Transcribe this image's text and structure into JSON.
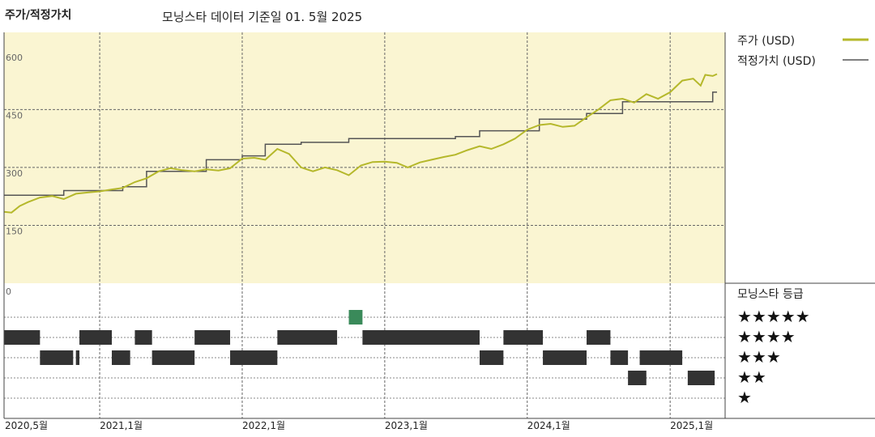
{
  "header": {
    "left_title": "주가/적정가치",
    "center_title": "모닝스타 데이터 기준일 01. 5월 2025"
  },
  "legend": {
    "price_label": "주가 (USD)",
    "fair_label": "적정가치 (USD)",
    "rating_title": "모닝스타 등급",
    "stars": [
      "★★★★★",
      "★★★★",
      "★★★",
      "★★",
      "★"
    ]
  },
  "colors": {
    "price_line": "#b5b82b",
    "fair_line": "#555555",
    "plot_bg": "#faf5d2",
    "rating_bar": "#333333",
    "rating_bar_5": "#3a8a5a"
  },
  "chart_data": [
    {
      "type": "line",
      "title": "",
      "y_ticks": [
        "600",
        "450",
        "300",
        "150",
        "0"
      ],
      "ylim": [
        0,
        650
      ],
      "x_ticks": [
        "2020,5월",
        "2021,1월",
        "2022,1월",
        "2023,1월",
        "2024,1월",
        "2025,1월"
      ],
      "x_tick_dates": [
        "2020-05-01",
        "2021-01-01",
        "2022-01-01",
        "2023-01-01",
        "2024-01-01",
        "2025-01-01"
      ],
      "xlim": [
        "2020-05-01",
        "2025-05-01"
      ],
      "series": [
        {
          "name": "주가 (USD)",
          "points": [
            [
              "2020-05-01",
              185
            ],
            [
              "2020-05-20",
              183
            ],
            [
              "2020-06-10",
              200
            ],
            [
              "2020-07-01",
              210
            ],
            [
              "2020-08-01",
              222
            ],
            [
              "2020-09-01",
              226
            ],
            [
              "2020-10-01",
              218
            ],
            [
              "2020-11-01",
              232
            ],
            [
              "2020-12-01",
              235
            ],
            [
              "2021-01-01",
              238
            ],
            [
              "2021-02-01",
              243
            ],
            [
              "2021-03-01",
              247
            ],
            [
              "2021-04-01",
              262
            ],
            [
              "2021-05-01",
              272
            ],
            [
              "2021-06-01",
              290
            ],
            [
              "2021-07-01",
              298
            ],
            [
              "2021-08-01",
              293
            ],
            [
              "2021-09-01",
              290
            ],
            [
              "2021-10-01",
              295
            ],
            [
              "2021-11-01",
              292
            ],
            [
              "2021-12-01",
              298
            ],
            [
              "2022-01-01",
              323
            ],
            [
              "2022-02-01",
              325
            ],
            [
              "2022-03-01",
              320
            ],
            [
              "2022-04-01",
              348
            ],
            [
              "2022-05-01",
              335
            ],
            [
              "2022-06-01",
              300
            ],
            [
              "2022-07-01",
              290
            ],
            [
              "2022-08-01",
              300
            ],
            [
              "2022-09-01",
              293
            ],
            [
              "2022-10-01",
              280
            ],
            [
              "2022-11-01",
              305
            ],
            [
              "2022-12-01",
              314
            ],
            [
              "2023-01-01",
              315
            ],
            [
              "2023-02-01",
              312
            ],
            [
              "2023-03-01",
              300
            ],
            [
              "2023-04-01",
              313
            ],
            [
              "2023-05-01",
              320
            ],
            [
              "2023-06-01",
              327
            ],
            [
              "2023-07-01",
              333
            ],
            [
              "2023-08-01",
              345
            ],
            [
              "2023-09-01",
              355
            ],
            [
              "2023-10-01",
              348
            ],
            [
              "2023-11-01",
              360
            ],
            [
              "2023-12-01",
              375
            ],
            [
              "2024-01-01",
              398
            ],
            [
              "2024-02-01",
              410
            ],
            [
              "2024-03-01",
              413
            ],
            [
              "2024-04-01",
              405
            ],
            [
              "2024-05-01",
              408
            ],
            [
              "2024-06-01",
              430
            ],
            [
              "2024-07-01",
              450
            ],
            [
              "2024-08-01",
              474
            ],
            [
              "2024-09-01",
              478
            ],
            [
              "2024-10-01",
              468
            ],
            [
              "2024-11-01",
              490
            ],
            [
              "2024-12-01",
              478
            ],
            [
              "2025-01-01",
              495
            ],
            [
              "2025-02-01",
              525
            ],
            [
              "2025-03-01",
              530
            ],
            [
              "2025-03-20",
              512
            ],
            [
              "2025-04-01",
              540
            ],
            [
              "2025-04-20",
              537
            ],
            [
              "2025-05-01",
              542
            ]
          ]
        },
        {
          "name": "적정가치 (USD)",
          "points": [
            [
              "2020-05-01",
              228
            ],
            [
              "2020-10-01",
              228
            ],
            [
              "2020-10-01",
              240
            ],
            [
              "2021-03-01",
              240
            ],
            [
              "2021-03-01",
              250
            ],
            [
              "2021-05-01",
              250
            ],
            [
              "2021-05-01",
              290
            ],
            [
              "2021-10-01",
              290
            ],
            [
              "2021-10-01",
              320
            ],
            [
              "2022-01-01",
              320
            ],
            [
              "2022-01-01",
              330
            ],
            [
              "2022-03-01",
              330
            ],
            [
              "2022-03-01",
              360
            ],
            [
              "2022-06-01",
              360
            ],
            [
              "2022-06-01",
              365
            ],
            [
              "2022-10-01",
              365
            ],
            [
              "2022-10-01",
              375
            ],
            [
              "2023-07-01",
              375
            ],
            [
              "2023-07-01",
              380
            ],
            [
              "2023-09-01",
              380
            ],
            [
              "2023-09-01",
              395
            ],
            [
              "2024-02-01",
              395
            ],
            [
              "2024-02-01",
              425
            ],
            [
              "2024-06-01",
              425
            ],
            [
              "2024-06-01",
              440
            ],
            [
              "2024-09-01",
              440
            ],
            [
              "2024-09-01",
              470
            ],
            [
              "2025-04-20",
              470
            ],
            [
              "2025-04-20",
              495
            ],
            [
              "2025-05-01",
              495
            ]
          ]
        }
      ]
    },
    {
      "type": "bar",
      "title": "",
      "xlim": [
        "2020-05-01",
        "2025-05-01"
      ],
      "series": [
        {
          "name": "5",
          "periods": [
            [
              "2022-10-01",
              "2022-11-05"
            ]
          ]
        },
        {
          "name": "4",
          "periods": [
            [
              "2020-05-01",
              "2020-08-01"
            ],
            [
              "2020-11-10",
              "2021-02-01"
            ],
            [
              "2021-04-01",
              "2021-05-15"
            ],
            [
              "2021-09-01",
              "2021-12-01"
            ],
            [
              "2022-04-01",
              "2022-09-01"
            ],
            [
              "2022-11-05",
              "2023-09-01"
            ],
            [
              "2023-11-01",
              "2024-02-10"
            ],
            [
              "2024-06-01",
              "2024-08-01"
            ]
          ]
        },
        {
          "name": "3",
          "periods": [
            [
              "2020-08-01",
              "2020-10-25"
            ],
            [
              "2020-11-01",
              "2020-11-10"
            ],
            [
              "2021-02-01",
              "2021-03-20"
            ],
            [
              "2021-05-15",
              "2021-09-01"
            ],
            [
              "2021-12-01",
              "2022-04-01"
            ],
            [
              "2023-09-01",
              "2023-11-01"
            ],
            [
              "2024-02-10",
              "2024-06-01"
            ],
            [
              "2024-08-01",
              "2024-09-15"
            ],
            [
              "2024-10-15",
              "2025-02-01"
            ]
          ]
        },
        {
          "name": "2",
          "periods": [
            [
              "2024-09-15",
              "2024-11-01"
            ],
            [
              "2025-02-15",
              "2025-04-25"
            ]
          ]
        },
        {
          "name": "1",
          "periods": []
        }
      ]
    }
  ]
}
